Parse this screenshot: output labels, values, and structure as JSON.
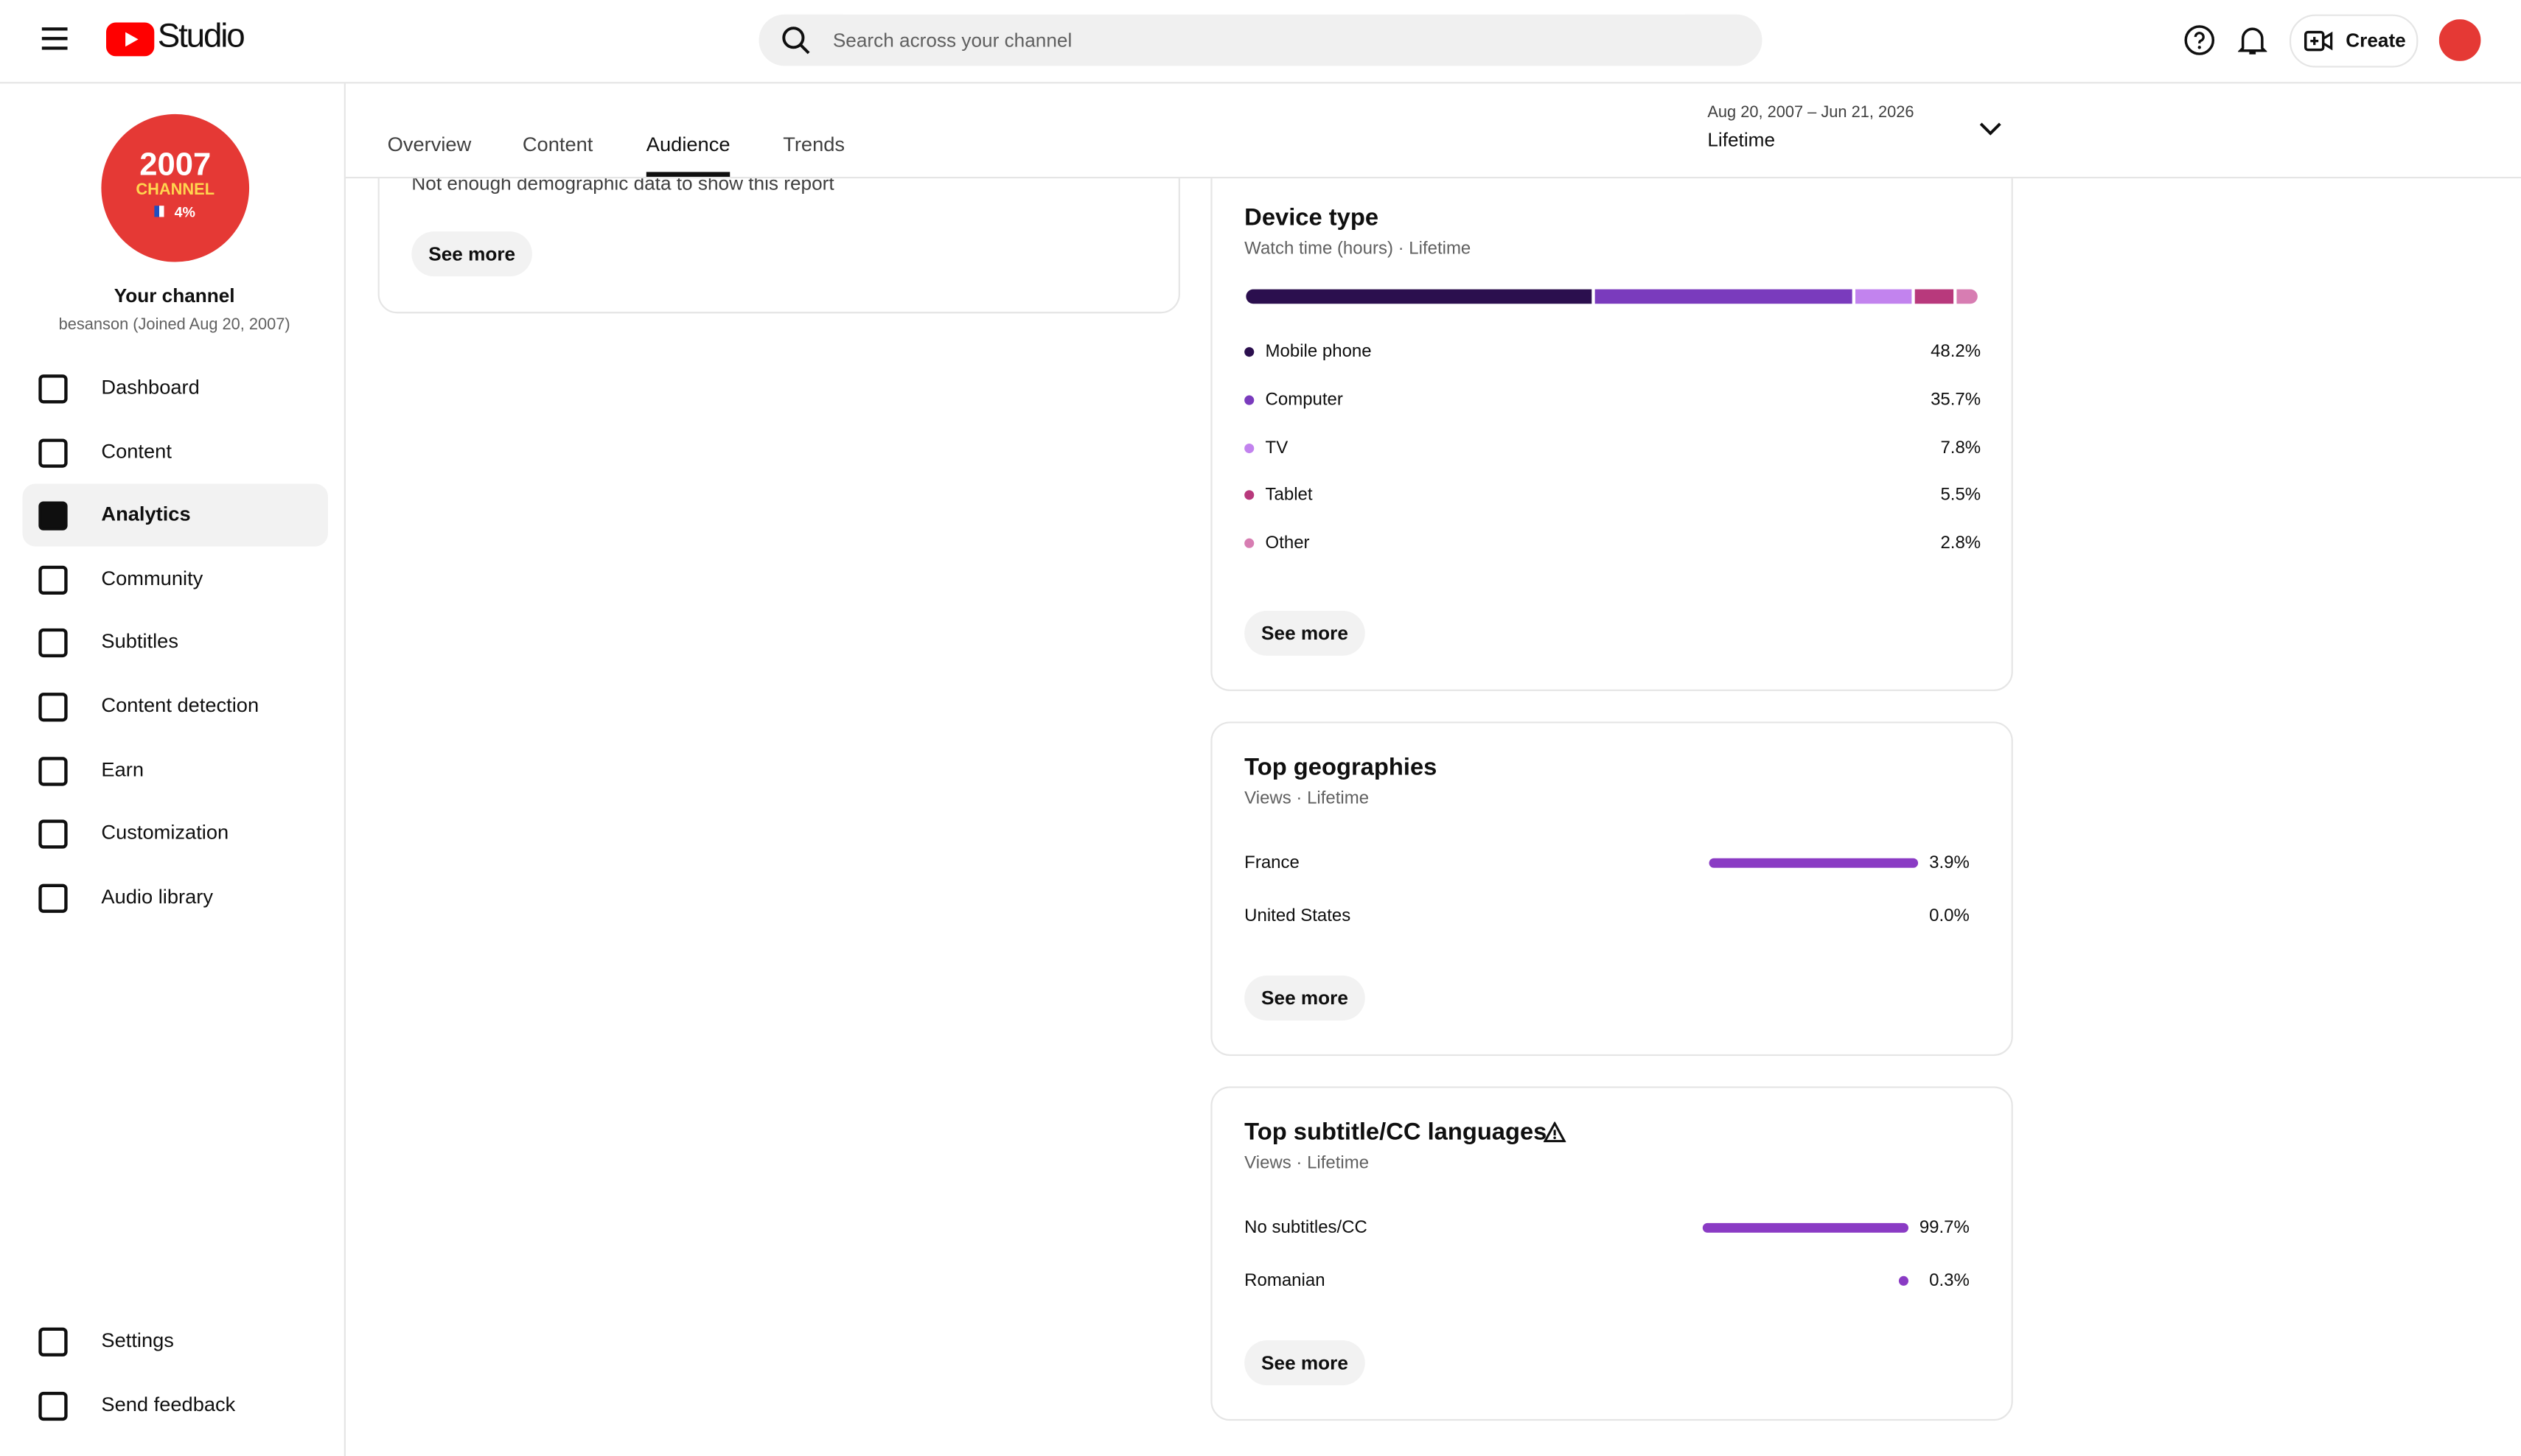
{
  "header": {
    "logo": "Studio",
    "search_placeholder": "Search across your channel",
    "create": "Create"
  },
  "sidebar": {
    "avatar": {
      "year": "2007",
      "word": "CHANNEL",
      "badge": "4%"
    },
    "channel_title": "Your channel",
    "channel_subtitle": "besanson (Joined Aug 20, 2007)",
    "nav": [
      "Dashboard",
      "Content",
      "Analytics",
      "Community",
      "Subtitles",
      "Content detection",
      "Earn",
      "Customization",
      "Audio library"
    ],
    "active": 2,
    "footer_nav": [
      "Settings",
      "Send feedback"
    ]
  },
  "tabs": {
    "items": [
      "Overview",
      "Content",
      "Audience",
      "Trends"
    ],
    "active": 2
  },
  "date_range": {
    "range": "Aug 20, 2007 – Jun 21, 2026",
    "label": "Lifetime"
  },
  "demographics_card": {
    "message": "Not enough demographic data to show this report",
    "button": "See more"
  },
  "device_type": {
    "title": "Device type",
    "subtitle": "Watch time (hours) · Lifetime",
    "button": "See more",
    "items": [
      {
        "name": "Mobile phone",
        "color": "#2b0f4e",
        "value": 48.2,
        "value_label": "48.2%"
      },
      {
        "name": "Computer",
        "color": "#7a3bbd",
        "value": 35.7,
        "value_label": "35.7%"
      },
      {
        "name": "TV",
        "color": "#c283ee",
        "value": 7.8,
        "value_label": "7.8%"
      },
      {
        "name": "Tablet",
        "color": "#b8397c",
        "value": 5.5,
        "value_label": "5.5%"
      },
      {
        "name": "Other",
        "color": "#d77db2",
        "value": 2.8,
        "value_label": "2.8%"
      }
    ]
  },
  "top_geographies": {
    "title": "Top geographies",
    "subtitle": "Views · Lifetime",
    "button": "See more",
    "color": "#8a3bc4",
    "rows": [
      {
        "name": "France",
        "value": 3.9,
        "value_label": "3.9%"
      },
      {
        "name": "United States",
        "value": 0.0,
        "value_label": "0.0%"
      }
    ]
  },
  "subtitle_languages": {
    "title": "Top subtitle/CC languages",
    "subtitle": "Views · Lifetime",
    "button": "See more",
    "color": "#8a3bc4",
    "rows": [
      {
        "name": "No subtitles/CC",
        "value": 99.7,
        "value_label": "99.7%"
      },
      {
        "name": "Romanian",
        "value": 0.3,
        "value_label": "0.3%"
      }
    ]
  }
}
